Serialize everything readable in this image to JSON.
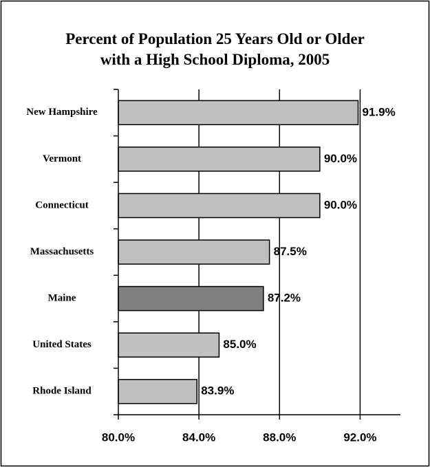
{
  "chart_data": {
    "type": "hbar",
    "title": "Percent of Population 25 Years Old or Older\nwith a High School Diploma, 2005",
    "categories": [
      "New Hampshire",
      "Vermont",
      "Connecticut",
      "Massachusetts",
      "Maine",
      "United States",
      "Rhode Island"
    ],
    "values": [
      91.9,
      90.0,
      90.0,
      87.5,
      87.2,
      85.0,
      83.9
    ],
    "value_labels": [
      "91.9%",
      "90.0%",
      "90.0%",
      "87.5%",
      "87.2%",
      "85.0%",
      "83.9%"
    ],
    "colors": [
      "#c0c0c0",
      "#c0c0c0",
      "#c0c0c0",
      "#c0c0c0",
      "#808080",
      "#c0c0c0",
      "#c0c0c0"
    ],
    "xlim": [
      80,
      94
    ],
    "xticks": [
      {
        "value": 80,
        "label": "80.0%"
      },
      {
        "value": 84,
        "label": "84.0%"
      },
      {
        "value": 88,
        "label": "88.0%"
      },
      {
        "value": 92,
        "label": "92.0%"
      }
    ],
    "grid": true
  }
}
